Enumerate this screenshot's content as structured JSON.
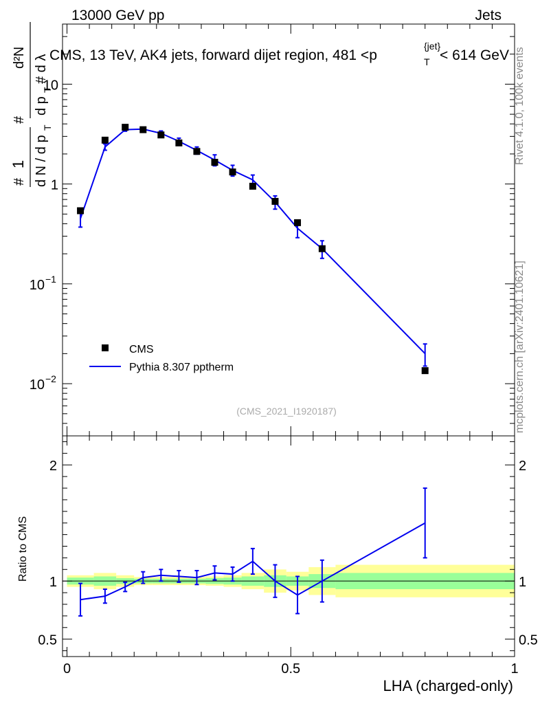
{
  "header": {
    "left": "13000 GeV pp",
    "right": "Jets",
    "plot_title": "CMS, 13 TeV, AK4 jets, forward dijet region, 481 <p_T^{jet}< 614 GeV",
    "title_main_a": "CMS, 13 TeV, AK4 jets, forward dijet region, 481 <p",
    "title_sup": "{jet}",
    "title_sub": "T",
    "title_main_b": "< 614 GeV"
  },
  "side_labels": {
    "rivet": "Rivet 4.1.0,  100k events",
    "mcplots": "mcplots.cern.ch [arXiv:2401.10621]"
  },
  "watermark": "(CMS_2021_I1920187)",
  "y_label_main": "#  1 / dN / dp_T  # d²N / dp_T dλ",
  "y_label_ratio": "Ratio to CMS",
  "x_label": "LHA (charged-only)",
  "legend": {
    "data_label": "CMS",
    "mc_label": "Pythia 8.307 pptherm"
  },
  "colors": {
    "data": "#000000",
    "mc": "#0000ee",
    "band_inner": "#99ff99",
    "band_outer": "#ffff99"
  },
  "chart_data": {
    "type": "line",
    "xlim": [
      -0.01,
      1.0
    ],
    "x_ticks": [
      "0",
      "0.5",
      "1"
    ],
    "main": {
      "yscale": "log",
      "ylim": [
        0.003,
        40
      ],
      "y_ticks": [
        {
          "value": 0.01,
          "base": "10",
          "exp": "−2"
        },
        {
          "value": 0.1,
          "base": "10",
          "exp": "−1"
        },
        {
          "value": 1,
          "base": "1",
          "exp": ""
        },
        {
          "value": 10,
          "base": "10",
          "exp": ""
        }
      ]
    },
    "ratio": {
      "ylim": [
        0.35,
        2.25
      ],
      "y_ticks": [
        "0.5",
        "1",
        "2"
      ]
    },
    "data_series": {
      "name": "CMS",
      "x": [
        0.03,
        0.085,
        0.13,
        0.17,
        0.21,
        0.25,
        0.29,
        0.33,
        0.37,
        0.415,
        0.465,
        0.515,
        0.57,
        0.8
      ],
      "y": [
        0.54,
        2.75,
        3.7,
        3.5,
        3.1,
        2.58,
        2.12,
        1.65,
        1.32,
        0.95,
        0.67,
        0.41,
        0.225,
        0.0135
      ]
    },
    "mc_series": {
      "name": "Pythia 8.307 pptherm",
      "x": [
        0.03,
        0.085,
        0.13,
        0.17,
        0.21,
        0.25,
        0.29,
        0.33,
        0.37,
        0.415,
        0.465,
        0.515,
        0.57,
        0.8
      ],
      "y": [
        0.45,
        2.35,
        3.5,
        3.55,
        3.22,
        2.68,
        2.17,
        1.74,
        1.37,
        1.1,
        0.66,
        0.36,
        0.225,
        0.02
      ],
      "yerr": [
        0.08,
        0.17,
        0.12,
        0.1,
        0.18,
        0.2,
        0.18,
        0.22,
        0.17,
        0.13,
        0.1,
        0.07,
        0.045,
        0.005
      ]
    },
    "ratio_series": {
      "x": [
        0.03,
        0.085,
        0.13,
        0.17,
        0.21,
        0.25,
        0.29,
        0.33,
        0.37,
        0.415,
        0.465,
        0.515,
        0.57,
        0.8
      ],
      "y": [
        0.84,
        0.87,
        0.95,
        1.03,
        1.05,
        1.04,
        1.03,
        1.07,
        1.06,
        1.17,
        1.0,
        0.88,
        1.0,
        1.5
      ],
      "yerr": [
        0.14,
        0.06,
        0.04,
        0.05,
        0.05,
        0.05,
        0.06,
        0.06,
        0.06,
        0.11,
        0.14,
        0.16,
        0.18,
        0.3
      ]
    },
    "bands": [
      {
        "x0": 0.0,
        "x1": 0.06,
        "inner": 0.03,
        "outer": 0.05
      },
      {
        "x0": 0.06,
        "x1": 0.11,
        "inner": 0.04,
        "outer": 0.07
      },
      {
        "x0": 0.11,
        "x1": 0.15,
        "inner": 0.025,
        "outer": 0.05
      },
      {
        "x0": 0.15,
        "x1": 0.19,
        "inner": 0.02,
        "outer": 0.035
      },
      {
        "x0": 0.19,
        "x1": 0.23,
        "inner": 0.02,
        "outer": 0.035
      },
      {
        "x0": 0.23,
        "x1": 0.27,
        "inner": 0.02,
        "outer": 0.035
      },
      {
        "x0": 0.27,
        "x1": 0.31,
        "inner": 0.02,
        "outer": 0.035
      },
      {
        "x0": 0.31,
        "x1": 0.35,
        "inner": 0.025,
        "outer": 0.04
      },
      {
        "x0": 0.35,
        "x1": 0.39,
        "inner": 0.03,
        "outer": 0.05
      },
      {
        "x0": 0.39,
        "x1": 0.44,
        "inner": 0.04,
        "outer": 0.07
      },
      {
        "x0": 0.44,
        "x1": 0.49,
        "inner": 0.05,
        "outer": 0.1
      },
      {
        "x0": 0.49,
        "x1": 0.54,
        "inner": 0.04,
        "outer": 0.08
      },
      {
        "x0": 0.54,
        "x1": 0.6,
        "inner": 0.06,
        "outer": 0.12
      },
      {
        "x0": 0.6,
        "x1": 1.0,
        "inner": 0.07,
        "outer": 0.14
      }
    ]
  }
}
